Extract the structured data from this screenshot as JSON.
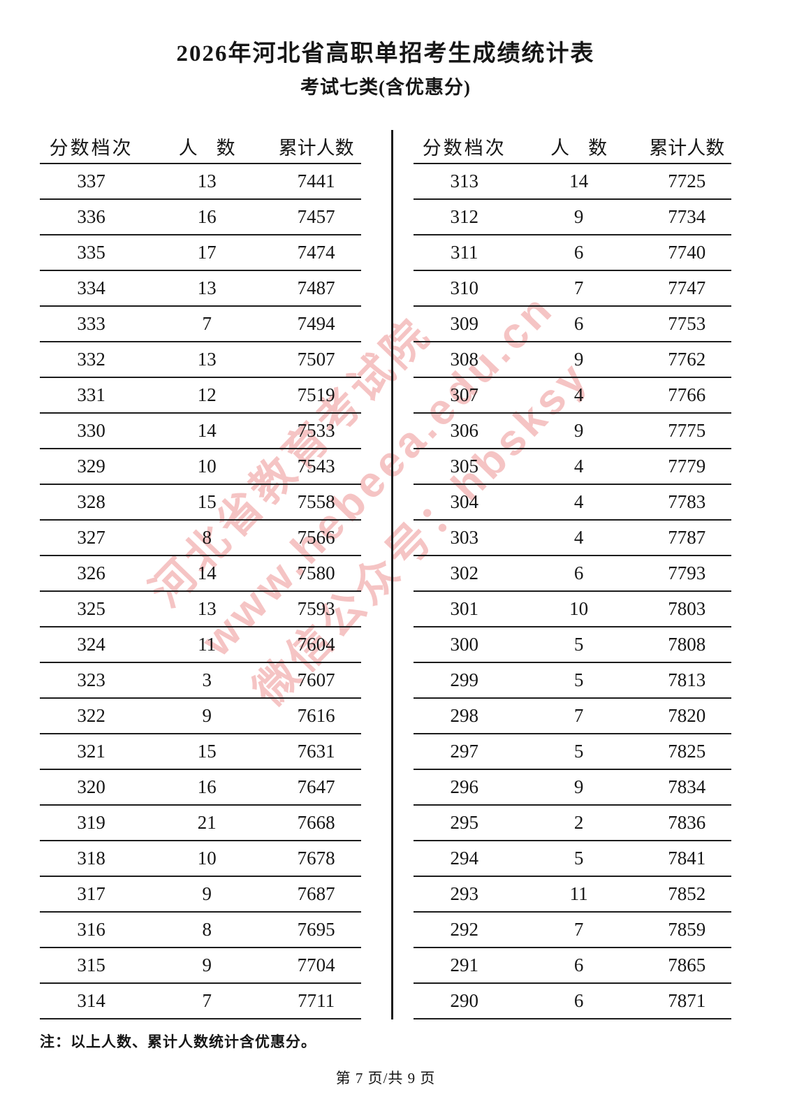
{
  "page": {
    "title": "2026年河北省高职单招考生成绩统计表",
    "subtitle": "考试七类(含优惠分)",
    "note": "注：以上人数、累计人数统计含优惠分。",
    "footer": "第 7 页/共 9 页"
  },
  "watermark": {
    "color": "#ee9595",
    "lines": [
      "河北省教育考试院",
      "www.hebeea.edu.cn",
      "微信公众号：hbsksy"
    ]
  },
  "table": {
    "headers": {
      "score": "分数档次",
      "count": "人　数",
      "cumulative": "累计人数"
    },
    "left_rows": [
      [
        "337",
        "13",
        "7441"
      ],
      [
        "336",
        "16",
        "7457"
      ],
      [
        "335",
        "17",
        "7474"
      ],
      [
        "334",
        "13",
        "7487"
      ],
      [
        "333",
        "7",
        "7494"
      ],
      [
        "332",
        "13",
        "7507"
      ],
      [
        "331",
        "12",
        "7519"
      ],
      [
        "330",
        "14",
        "7533"
      ],
      [
        "329",
        "10",
        "7543"
      ],
      [
        "328",
        "15",
        "7558"
      ],
      [
        "327",
        "8",
        "7566"
      ],
      [
        "326",
        "14",
        "7580"
      ],
      [
        "325",
        "13",
        "7593"
      ],
      [
        "324",
        "11",
        "7604"
      ],
      [
        "323",
        "3",
        "7607"
      ],
      [
        "322",
        "9",
        "7616"
      ],
      [
        "321",
        "15",
        "7631"
      ],
      [
        "320",
        "16",
        "7647"
      ],
      [
        "319",
        "21",
        "7668"
      ],
      [
        "318",
        "10",
        "7678"
      ],
      [
        "317",
        "9",
        "7687"
      ],
      [
        "316",
        "8",
        "7695"
      ],
      [
        "315",
        "9",
        "7704"
      ],
      [
        "314",
        "7",
        "7711"
      ]
    ],
    "right_rows": [
      [
        "313",
        "14",
        "7725"
      ],
      [
        "312",
        "9",
        "7734"
      ],
      [
        "311",
        "6",
        "7740"
      ],
      [
        "310",
        "7",
        "7747"
      ],
      [
        "309",
        "6",
        "7753"
      ],
      [
        "308",
        "9",
        "7762"
      ],
      [
        "307",
        "4",
        "7766"
      ],
      [
        "306",
        "9",
        "7775"
      ],
      [
        "305",
        "4",
        "7779"
      ],
      [
        "304",
        "4",
        "7783"
      ],
      [
        "303",
        "4",
        "7787"
      ],
      [
        "302",
        "6",
        "7793"
      ],
      [
        "301",
        "10",
        "7803"
      ],
      [
        "300",
        "5",
        "7808"
      ],
      [
        "299",
        "5",
        "7813"
      ],
      [
        "298",
        "7",
        "7820"
      ],
      [
        "297",
        "5",
        "7825"
      ],
      [
        "296",
        "9",
        "7834"
      ],
      [
        "295",
        "2",
        "7836"
      ],
      [
        "294",
        "5",
        "7841"
      ],
      [
        "293",
        "11",
        "7852"
      ],
      [
        "292",
        "7",
        "7859"
      ],
      [
        "291",
        "6",
        "7865"
      ],
      [
        "290",
        "6",
        "7871"
      ]
    ]
  }
}
